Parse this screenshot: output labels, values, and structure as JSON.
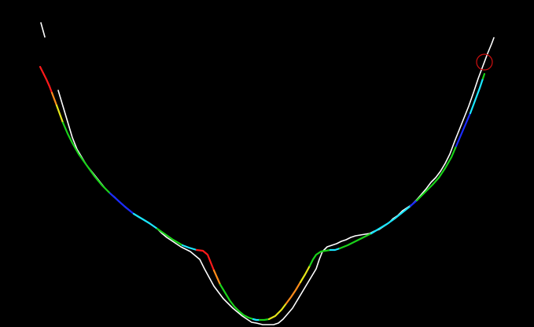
{
  "scene": {
    "background": "#000000",
    "reference_curve": {
      "color": "#ffffff",
      "description_kind": "white jagged reference profile"
    },
    "fitted_curve": {
      "colors": {
        "red": "#ff1a1a",
        "orange": "#ff8c1a",
        "yellow": "#e6e61a",
        "green": "#1ad21a",
        "cyan": "#1ae6ff",
        "blue": "#1a2cff"
      }
    },
    "marker": {
      "shape": "circle",
      "color": "#d01010"
    }
  }
}
